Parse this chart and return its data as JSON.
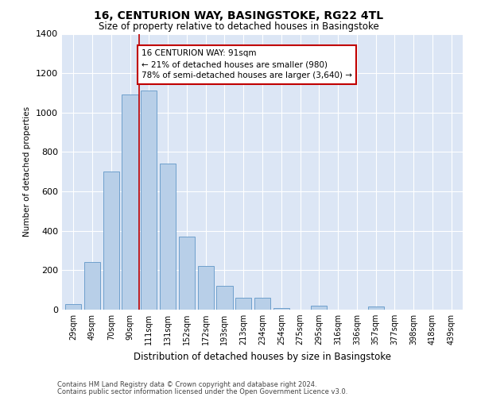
{
  "title_line1": "16, CENTURION WAY, BASINGSTOKE, RG22 4TL",
  "title_line2": "Size of property relative to detached houses in Basingstoke",
  "xlabel": "Distribution of detached houses by size in Basingstoke",
  "ylabel": "Number of detached properties",
  "bar_color": "#b8cfe8",
  "bar_edge_color": "#6fa0cc",
  "bg_color": "#dce6f5",
  "grid_color": "white",
  "annotation_line_color": "#c00000",
  "annotation_box_color": "#c00000",
  "annotation_text": "16 CENTURION WAY: 91sqm\n← 21% of detached houses are smaller (980)\n78% of semi-detached houses are larger (3,640) →",
  "property_size": 91,
  "categories": [
    "29sqm",
    "49sqm",
    "70sqm",
    "90sqm",
    "111sqm",
    "131sqm",
    "152sqm",
    "172sqm",
    "193sqm",
    "213sqm",
    "234sqm",
    "254sqm",
    "275sqm",
    "295sqm",
    "316sqm",
    "336sqm",
    "357sqm",
    "377sqm",
    "398sqm",
    "418sqm",
    "439sqm"
  ],
  "values": [
    30,
    240,
    700,
    1090,
    1110,
    740,
    370,
    220,
    120,
    60,
    60,
    10,
    0,
    20,
    0,
    0,
    15,
    0,
    0,
    0,
    0
  ],
  "ylim": [
    0,
    1400
  ],
  "yticks": [
    0,
    200,
    400,
    600,
    800,
    1000,
    1200,
    1400
  ],
  "footnote1": "Contains HM Land Registry data © Crown copyright and database right 2024.",
  "footnote2": "Contains public sector information licensed under the Open Government Licence v3.0."
}
